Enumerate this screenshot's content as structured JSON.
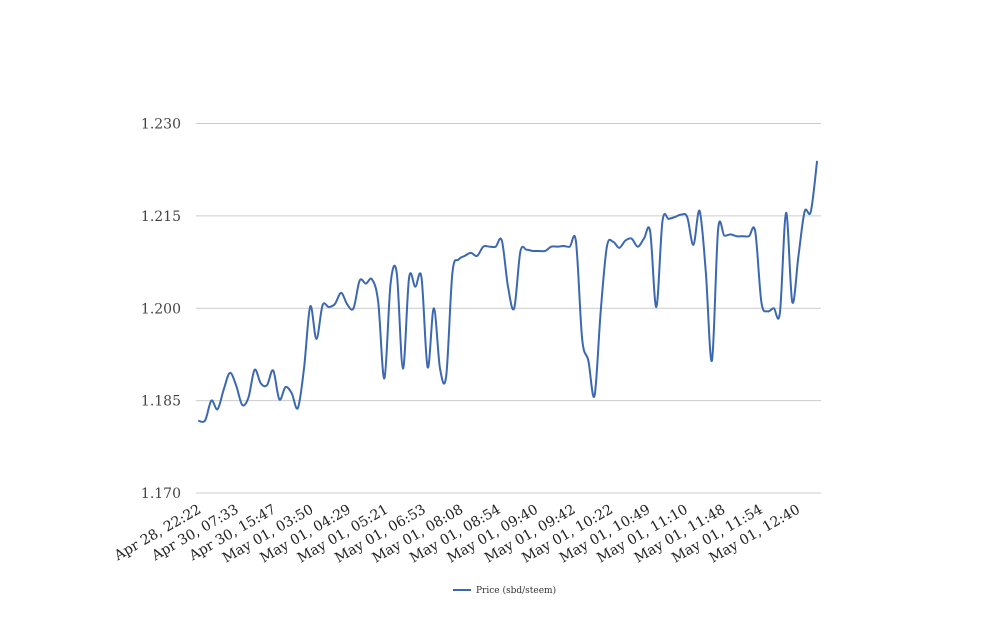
{
  "chart_data": {
    "type": "line",
    "title": "",
    "xlabel": "",
    "ylabel": "",
    "ylim": [
      1.17,
      1.23
    ],
    "yticks": [
      "1.170",
      "1.185",
      "1.200",
      "1.215",
      "1.230"
    ],
    "grid": true,
    "legend_placement": "bottom-center",
    "line_color": "#3c68b1",
    "x_tick_labels": [
      "Apr 28, 22:22",
      "Apr 30, 07:33",
      "Apr 30, 15:47",
      "May 01, 03:50",
      "May 01, 04:29",
      "May 01, 05:21",
      "May 01, 06:53",
      "May 01, 08:08",
      "May 01, 08:54",
      "May 01, 09:40",
      "May 01, 09:42",
      "May 01, 10:22",
      "May 01, 10:49",
      "May 01, 11:10",
      "May 01, 11:48",
      "May 01, 11:54",
      "May 01, 12:40"
    ],
    "series": [
      {
        "name": "Price (sbd/steem)",
        "values": [
          1.1817,
          1.1818,
          1.185,
          1.1836,
          1.1868,
          1.1895,
          1.1875,
          1.1843,
          1.1855,
          1.19,
          1.1878,
          1.1875,
          1.1899,
          1.1852,
          1.1872,
          1.1862,
          1.1838,
          1.1903,
          1.2003,
          1.195,
          1.2005,
          1.2002,
          1.2007,
          1.2025,
          1.2006,
          1.2,
          1.2045,
          1.204,
          1.2047,
          1.201,
          1.1886,
          1.204,
          1.2057,
          1.1902,
          1.205,
          1.2035,
          1.205,
          1.1904,
          1.2,
          1.1902,
          1.189,
          1.2057,
          1.2079,
          1.2085,
          1.209,
          1.2085,
          1.21,
          1.21,
          1.21,
          1.211,
          1.2035,
          1.2,
          1.2092,
          1.2095,
          1.2093,
          1.2093,
          1.2093,
          1.21,
          1.21,
          1.2101,
          1.21,
          1.2108,
          1.195,
          1.1915,
          1.1858,
          1.1995,
          1.21,
          1.2108,
          1.2098,
          1.211,
          1.2113,
          1.21,
          1.2113,
          1.2125,
          1.2002,
          1.2142,
          1.2145,
          1.2148,
          1.2152,
          1.2148,
          1.2103,
          1.2158,
          1.206,
          1.1915,
          1.2128,
          1.2118,
          1.212,
          1.2117,
          1.2117,
          1.2117,
          1.2125,
          1.201,
          1.1995,
          1.2,
          1.1993,
          1.2155,
          1.201,
          1.2085,
          1.2157,
          1.2157,
          1.2238
        ]
      }
    ]
  }
}
